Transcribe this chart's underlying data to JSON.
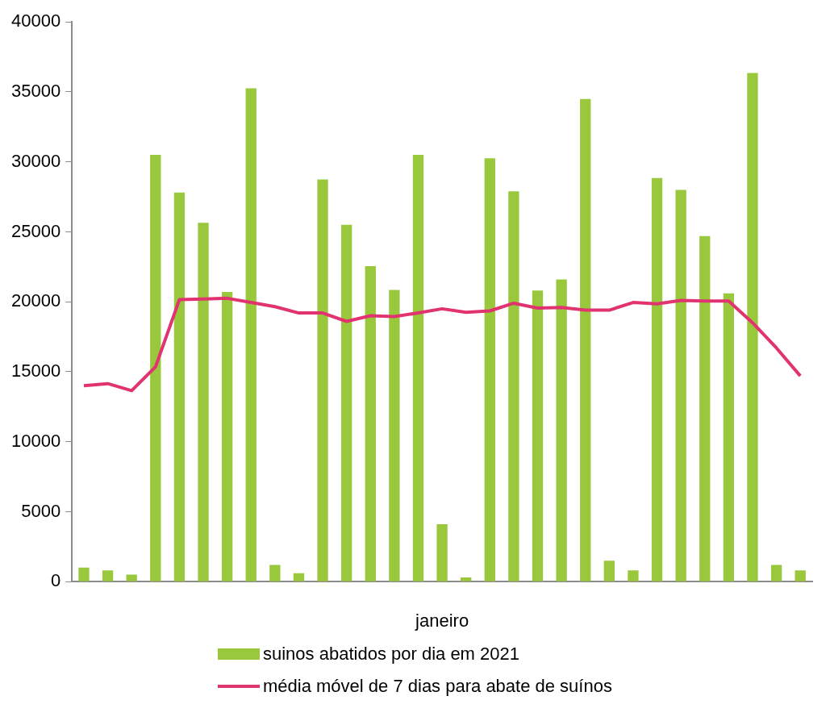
{
  "chart_data": {
    "type": "bar",
    "xlabel": "janeiro",
    "categories": [
      null,
      null,
      null,
      null,
      null,
      null,
      null,
      null,
      null,
      null,
      null,
      null,
      null,
      null,
      null,
      null,
      null,
      null,
      null,
      null,
      null,
      null,
      null,
      null,
      null,
      null,
      null,
      null,
      null,
      null,
      null
    ],
    "series": [
      {
        "name": "suinos abatidos por dia em 2021",
        "color": "#99c83c",
        "values": [
          1000,
          800,
          500,
          30500,
          27800,
          25650,
          20700,
          35250,
          1200,
          600,
          28750,
          25500,
          22550,
          20850,
          30500,
          4100,
          300,
          30250,
          27900,
          20800,
          21600,
          34500,
          1500,
          800,
          28850,
          28000,
          24700,
          20600,
          36350,
          1200,
          800
        ]
      },
      {
        "name": "média móvel de 7 dias para abate de suínos",
        "type": "line",
        "color": "#e0336f",
        "values": [
          14000,
          14150,
          13650,
          15350,
          20150,
          20200,
          20250,
          19950,
          19650,
          19200,
          19200,
          18600,
          19000,
          18950,
          19200,
          19500,
          19250,
          19350,
          19900,
          19550,
          19600,
          19400,
          19400,
          19950,
          19850,
          20100,
          20050,
          20050,
          18500,
          16700,
          14700
        ]
      }
    ],
    "ylim": [
      0,
      40000
    ],
    "yticks": [
      0,
      5000,
      10000,
      15000,
      20000,
      25000,
      30000,
      35000,
      40000
    ],
    "grid": false,
    "legend": "bottom",
    "marker": "none",
    "line_style": "solid"
  }
}
